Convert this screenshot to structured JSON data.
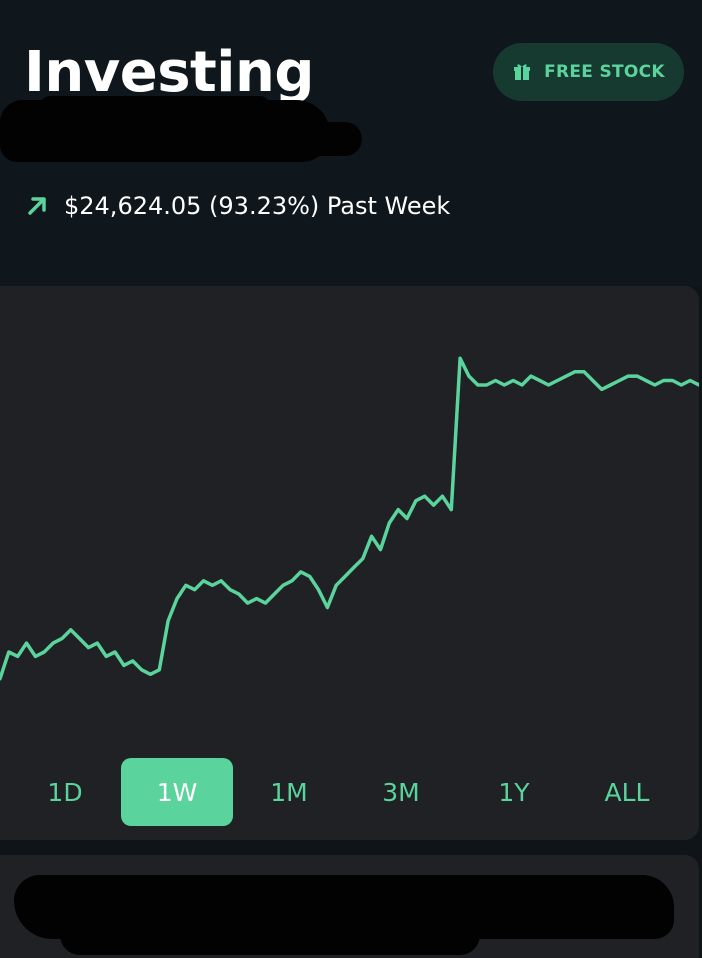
{
  "header": {
    "title": "Investing",
    "free_stock_label": "FREE STOCK",
    "gift_icon": "gift-icon"
  },
  "performance": {
    "arrow_icon": "arrow-up-right-icon",
    "text": "$24,624.05 (93.23%) Past Week"
  },
  "colors": {
    "accent": "#5ad39c",
    "background": "#10171c",
    "card": "#1f2124"
  },
  "ranges": [
    {
      "label": "1D",
      "active": false
    },
    {
      "label": "1W",
      "active": true
    },
    {
      "label": "1M",
      "active": false
    },
    {
      "label": "3M",
      "active": false
    },
    {
      "label": "1Y",
      "active": false
    },
    {
      "label": "ALL",
      "active": false
    }
  ],
  "chart_data": {
    "type": "line",
    "title": "",
    "xlabel": "",
    "ylabel": "",
    "grid": false,
    "ylim": [
      0,
      100
    ],
    "series": [
      {
        "values": [
          14,
          20,
          19,
          22,
          19,
          20,
          22,
          23,
          25,
          23,
          21,
          22,
          19,
          20,
          17,
          18,
          16,
          15,
          16,
          27,
          32,
          35,
          34,
          36,
          35,
          36,
          34,
          33,
          31,
          32,
          31,
          33,
          35,
          36,
          38,
          37,
          34,
          30,
          35,
          37,
          39,
          41,
          46,
          43,
          49,
          52,
          50,
          54,
          55,
          53,
          55,
          52,
          86,
          82,
          80,
          80,
          81,
          80,
          81,
          80,
          82,
          81,
          80,
          81,
          82,
          83,
          83,
          81,
          79,
          80,
          81,
          82,
          82,
          81,
          80,
          81,
          81,
          80,
          81,
          80
        ]
      }
    ]
  }
}
